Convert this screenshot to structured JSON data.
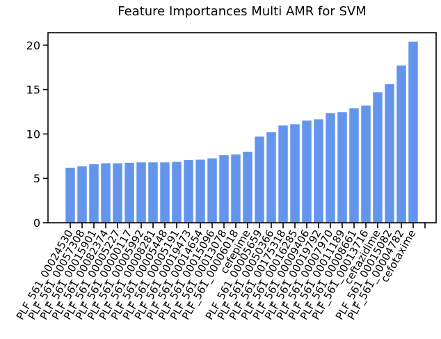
{
  "chart_data": {
    "type": "bar",
    "title": "Feature Importances Multi AMR for SVM",
    "xlabel": "",
    "ylabel": "",
    "ylim": [
      0,
      21.4
    ],
    "yticks": [
      0,
      5,
      10,
      15,
      20
    ],
    "grid": false,
    "bar_color": "#6495ED",
    "categories": [
      "PLF_561_00024530",
      "PLF_561_00057308",
      "PLF_561_00015901",
      "PLF_561_00082374",
      "PLF_561_00005227",
      "PLF_561_00000117",
      "PLF_561_00005992",
      "PLF_561_00008281",
      "PLF_561_00005448",
      "PLF_561_00005191",
      "PLF_561_00019473",
      "PLF_561_00014654",
      "PLF_561_00015096",
      "PLF_561_00013078",
      "PLF_561_00006018",
      "cefepime",
      "PLF_561_00005659",
      "PLF_561_00050366",
      "PLF_561_00175318",
      "PLF_561_00016285",
      "PLF_561_00009406",
      "PLF_561_00019792",
      "PLF_561_00007970",
      "PLF_561_00011189",
      "PLF_561_00008661",
      "PLF_561_00013716",
      "ceftazidime",
      "PLF_561_00015082",
      "PLF_561_00004782",
      "cefotaxime"
    ],
    "values": [
      6.2,
      6.35,
      6.6,
      6.7,
      6.7,
      6.75,
      6.8,
      6.8,
      6.8,
      6.85,
      7.05,
      7.1,
      7.25,
      7.6,
      7.7,
      8.0,
      9.7,
      10.2,
      10.95,
      11.1,
      11.5,
      11.65,
      12.35,
      12.45,
      12.9,
      13.2,
      14.7,
      15.6,
      17.7,
      20.4
    ]
  }
}
